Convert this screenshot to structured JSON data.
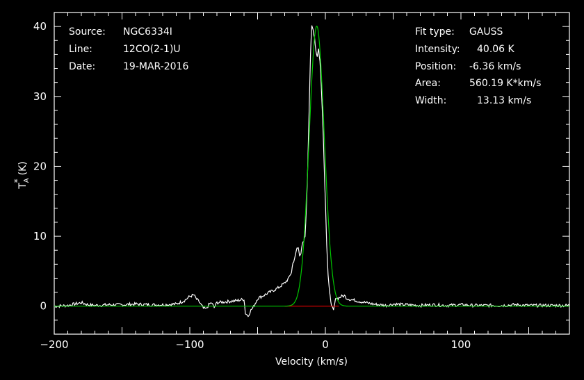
{
  "chart_data": {
    "type": "line",
    "xlabel": "Velocity (km/s)",
    "ylabel": {
      "base": "T",
      "sup": "*",
      "sub": "A",
      "unit": "(K)"
    },
    "xlim": [
      -200,
      180
    ],
    "ylim": [
      -4,
      42
    ],
    "xticks": [
      "-200",
      "-100",
      "0",
      "100"
    ],
    "yticks": [
      "0",
      "10",
      "20",
      "30",
      "40"
    ],
    "colors": {
      "spectrum": "#ffffff",
      "fit": "#00c800",
      "baseline": "#ff0000",
      "background": "#000000"
    },
    "info_left": {
      "source": {
        "label": "Source:",
        "value": "NGC6334I"
      },
      "line": {
        "label": "Line:",
        "value": "12CO(2-1)U"
      },
      "date": {
        "label": "Date:",
        "value": "19-MAR-2016"
      }
    },
    "info_right": {
      "fit_type": {
        "label": "Fit type:",
        "value": "GAUSS"
      },
      "intensity": {
        "label": "Intensity:",
        "value": "40.06 K"
      },
      "position": {
        "label": "Position:",
        "value": "-6.36 km/s"
      },
      "area": {
        "label": "Area:",
        "value": "560.19 K*km/s"
      },
      "width": {
        "label": "Width:",
        "value": "13.13 km/s"
      }
    },
    "fit": {
      "amplitude": 40.06,
      "center": -6.36,
      "fwhm": 13.13
    },
    "baseline_segment": {
      "x": [
        -30,
        10
      ],
      "y": 0
    },
    "series": [
      {
        "x": [
          -200,
          -190,
          -185,
          -180,
          -175,
          -170,
          -160,
          -150,
          -140,
          -130,
          -120,
          -110,
          -104,
          -100,
          -97,
          -95,
          -93,
          -90,
          -88,
          -86,
          -84,
          -82,
          -80,
          -75,
          -70,
          -65,
          -60,
          -59,
          -57,
          -55,
          -53,
          -50,
          -45,
          -40,
          -35,
          -30,
          -27,
          -25,
          -24,
          -22,
          -21,
          -20,
          -19,
          -18,
          -17,
          -16,
          -15,
          -14,
          -13,
          -12,
          -11,
          -10,
          -9,
          -8,
          -7,
          -6,
          -5,
          -4,
          -3,
          -2,
          -1,
          0,
          1,
          2,
          3,
          4,
          5,
          6,
          7,
          8,
          9,
          10,
          12,
          14,
          16,
          18,
          20,
          25,
          30,
          35,
          40,
          45,
          50,
          60,
          70,
          80,
          90,
          100,
          110,
          120,
          130,
          140,
          150,
          160,
          170,
          180
        ],
        "y": [
          0,
          0.1,
          0.3,
          0.5,
          0.2,
          0.1,
          0.2,
          0.2,
          0.3,
          0.2,
          0.2,
          0.3,
          0.8,
          1.4,
          1.6,
          1.0,
          0.6,
          -0.3,
          -0.4,
          0.2,
          0.5,
          -0.2,
          0.5,
          0.6,
          0.7,
          0.8,
          1.0,
          -1.0,
          -1.4,
          -0.6,
          -0.1,
          1.1,
          1.6,
          2.1,
          2.6,
          3.3,
          4.0,
          4.9,
          6.1,
          7.3,
          8.3,
          8.3,
          7.4,
          7.6,
          8.8,
          9.2,
          10.0,
          14.0,
          20.0,
          28.0,
          36.0,
          40.0,
          39.5,
          38.5,
          36.5,
          35.8,
          36.8,
          35.0,
          31.5,
          27.0,
          21.0,
          15.0,
          9.0,
          4.5,
          2.0,
          0.8,
          -0.2,
          -0.7,
          0.5,
          1.3,
          1.1,
          1.2,
          1.4,
          1.5,
          1.1,
          1.0,
          0.9,
          0.7,
          0.5,
          0.3,
          0.2,
          0.1,
          0.3,
          0.2,
          0.1,
          0.2,
          0.1,
          0.2,
          0.1,
          0.1,
          0.1,
          0.2,
          0.1,
          0.1,
          0.1,
          0.1
        ]
      }
    ]
  }
}
